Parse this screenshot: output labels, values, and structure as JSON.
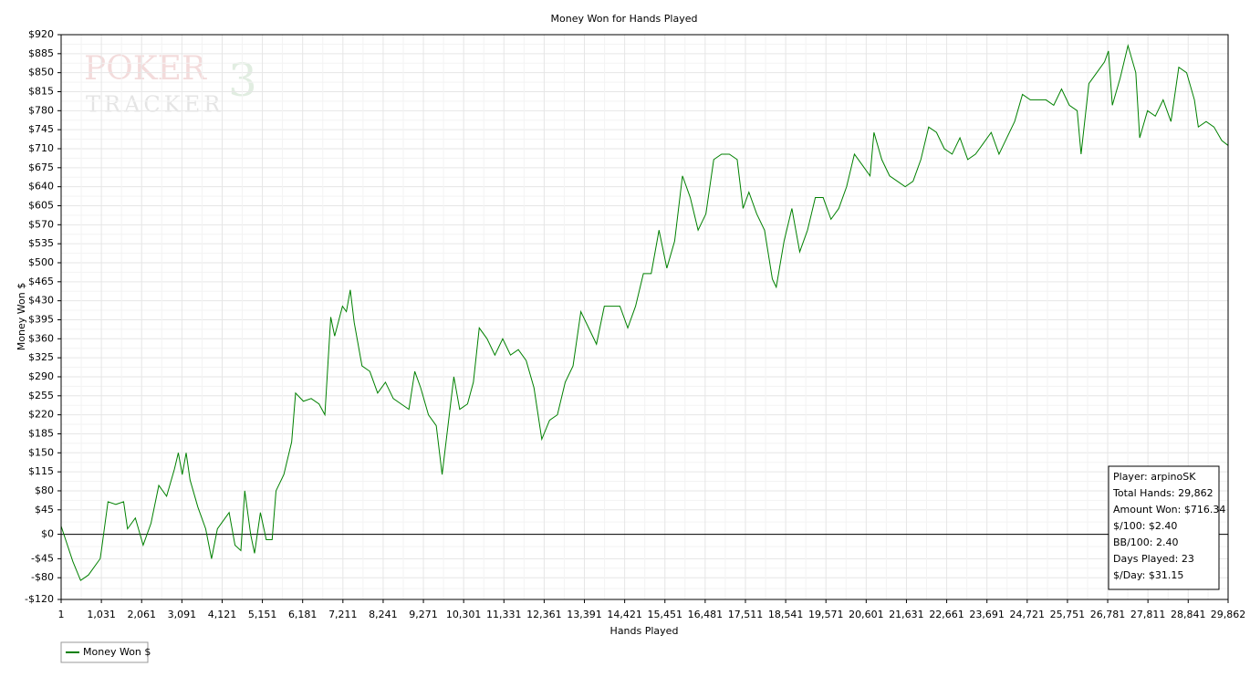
{
  "chart_data": {
    "type": "line",
    "title": "Money Won for Hands Played",
    "x_label": "Hands Played",
    "y_label": "Money Won $",
    "watermark": [
      "POKER",
      "TRACKER",
      "3"
    ],
    "info_box": [
      "Player: arpinoSK",
      "Total Hands: 29,862",
      "Amount Won: $716.34",
      "$/100: $2.40",
      "BB/100: 2.40",
      "Days Played: 23",
      "$/Day: $31.15"
    ],
    "grid": true,
    "legend": "bottom-left",
    "xlim": [
      1,
      29862
    ],
    "ylim": [
      -120,
      920
    ],
    "xticks": [
      1,
      {
        "value": 1031,
        "label": "1,031"
      },
      {
        "value": 2061,
        "label": "2,061"
      },
      {
        "value": 3091,
        "label": "3,091"
      },
      {
        "value": 4121,
        "label": "4,121"
      },
      {
        "value": 5151,
        "label": "5,151"
      },
      {
        "value": 6181,
        "label": "6,181"
      },
      {
        "value": 7211,
        "label": "7,211"
      },
      {
        "value": 8241,
        "label": "8,241"
      },
      {
        "value": 9271,
        "label": "9,271"
      },
      {
        "value": 10301,
        "label": "10,301"
      },
      {
        "value": 11331,
        "label": "11,331"
      },
      {
        "value": 12361,
        "label": "12,361"
      },
      {
        "value": 13391,
        "label": "13,391"
      },
      {
        "value": 14421,
        "label": "14,421"
      },
      {
        "value": 15451,
        "label": "15,451"
      },
      {
        "value": 16481,
        "label": "16,481"
      },
      {
        "value": 17511,
        "label": "17,511"
      },
      {
        "value": 18541,
        "label": "18,541"
      },
      {
        "value": 19571,
        "label": "19,571"
      },
      {
        "value": 20601,
        "label": "20,601"
      },
      {
        "value": 21631,
        "label": "21,631"
      },
      {
        "value": 22661,
        "label": "22,661"
      },
      {
        "value": 23691,
        "label": "23,691"
      },
      {
        "value": 24721,
        "label": "24,721"
      },
      {
        "value": 25751,
        "label": "25,751"
      },
      {
        "value": 26781,
        "label": "26,781"
      },
      {
        "value": 27811,
        "label": "27,811"
      },
      {
        "value": 28841,
        "label": "28,841"
      },
      {
        "value": 29862,
        "label": "29,862"
      }
    ],
    "yticks": [
      {
        "value": -120,
        "label": "-$120"
      },
      {
        "value": -80,
        "label": "-$80"
      },
      {
        "value": -45,
        "label": "-$45"
      },
      {
        "value": 0,
        "label": "$0"
      },
      {
        "value": 45,
        "label": "$45"
      },
      {
        "value": 80,
        "label": "$80"
      },
      {
        "value": 115,
        "label": "$115"
      },
      {
        "value": 150,
        "label": "$150"
      },
      {
        "value": 185,
        "label": "$185"
      },
      {
        "value": 220,
        "label": "$220"
      },
      {
        "value": 255,
        "label": "$255"
      },
      {
        "value": 290,
        "label": "$290"
      },
      {
        "value": 325,
        "label": "$325"
      },
      {
        "value": 360,
        "label": "$360"
      },
      {
        "value": 395,
        "label": "$395"
      },
      {
        "value": 430,
        "label": "$430"
      },
      {
        "value": 465,
        "label": "$465"
      },
      {
        "value": 500,
        "label": "$500"
      },
      {
        "value": 535,
        "label": "$535"
      },
      {
        "value": 570,
        "label": "$570"
      },
      {
        "value": 605,
        "label": "$605"
      },
      {
        "value": 640,
        "label": "$640"
      },
      {
        "value": 675,
        "label": "$675"
      },
      {
        "value": 710,
        "label": "$710"
      },
      {
        "value": 745,
        "label": "$745"
      },
      {
        "value": 780,
        "label": "$780"
      },
      {
        "value": 815,
        "label": "$815"
      },
      {
        "value": 850,
        "label": "$850"
      },
      {
        "value": 885,
        "label": "$885"
      },
      {
        "value": 920,
        "label": "$920"
      }
    ],
    "x": [
      1,
      300,
      500,
      700,
      1000,
      1031,
      1200,
      1400,
      1600,
      1700,
      1900,
      2100,
      2300,
      2500,
      2700,
      2900,
      3000,
      3100,
      3200,
      3300,
      3500,
      3700,
      3850,
      4000,
      4200,
      4300,
      4450,
      4600,
      4700,
      4850,
      4950,
      5100,
      5250,
      5400,
      5500,
      5700,
      5900,
      6000,
      6200,
      6400,
      6600,
      6750,
      6900,
      7000,
      7200,
      7300,
      7400,
      7500,
      7700,
      7900,
      8100,
      8300,
      8500,
      8700,
      8900,
      9050,
      9200,
      9400,
      9600,
      9750,
      9900,
      10050,
      10200,
      10400,
      10550,
      10700,
      10900,
      11100,
      11300,
      11500,
      11700,
      11900,
      12100,
      12300,
      12500,
      12700,
      12900,
      13100,
      13300,
      13500,
      13700,
      13900,
      14100,
      14300,
      14500,
      14700,
      14900,
      15100,
      15300,
      15500,
      15700,
      15900,
      16100,
      16300,
      16500,
      16700,
      16900,
      17100,
      17300,
      17450,
      17600,
      17800,
      18000,
      18200,
      18300,
      18500,
      18700,
      18900,
      19100,
      19300,
      19500,
      19700,
      19900,
      20100,
      20300,
      20500,
      20700,
      20800,
      21000,
      21200,
      21400,
      21600,
      21800,
      22000,
      22200,
      22400,
      22600,
      22800,
      23000,
      23200,
      23400,
      23600,
      23800,
      24000,
      24200,
      24400,
      24600,
      24800,
      25000,
      25200,
      25400,
      25600,
      25800,
      26000,
      26100,
      26300,
      26500,
      26700,
      26800,
      26900,
      27100,
      27300,
      27500,
      27600,
      27800,
      28000,
      28200,
      28400,
      28600,
      28800,
      29000,
      29100,
      29300,
      29500,
      29700,
      29862
    ],
    "series": [
      {
        "name": "Money Won $",
        "color": "#008000",
        "values": [
          15,
          -50,
          -85,
          -75,
          -45,
          -30,
          60,
          55,
          60,
          10,
          30,
          -20,
          20,
          90,
          70,
          120,
          150,
          110,
          150,
          100,
          50,
          10,
          -45,
          10,
          30,
          40,
          -20,
          -30,
          80,
          0,
          -35,
          40,
          -10,
          -10,
          80,
          110,
          170,
          260,
          245,
          250,
          240,
          220,
          400,
          365,
          420,
          410,
          450,
          390,
          310,
          300,
          260,
          280,
          250,
          240,
          230,
          300,
          270,
          220,
          200,
          110,
          200,
          290,
          230,
          240,
          280,
          380,
          360,
          330,
          360,
          330,
          340,
          320,
          270,
          175,
          210,
          220,
          280,
          310,
          410,
          380,
          350,
          420,
          420,
          420,
          380,
          420,
          480,
          480,
          560,
          490,
          540,
          660,
          620,
          560,
          590,
          690,
          700,
          700,
          690,
          600,
          630,
          590,
          560,
          470,
          455,
          540,
          600,
          520,
          560,
          620,
          620,
          580,
          600,
          640,
          700,
          680,
          660,
          740,
          690,
          660,
          650,
          640,
          650,
          690,
          750,
          740,
          710,
          700,
          730,
          690,
          700,
          720,
          740,
          700,
          730,
          760,
          810,
          800,
          800,
          800,
          790,
          820,
          790,
          780,
          700,
          830,
          850,
          870,
          890,
          790,
          840,
          900,
          850,
          730,
          780,
          770,
          800,
          760,
          860,
          850,
          800,
          750,
          760,
          750,
          725,
          716
        ]
      }
    ]
  }
}
